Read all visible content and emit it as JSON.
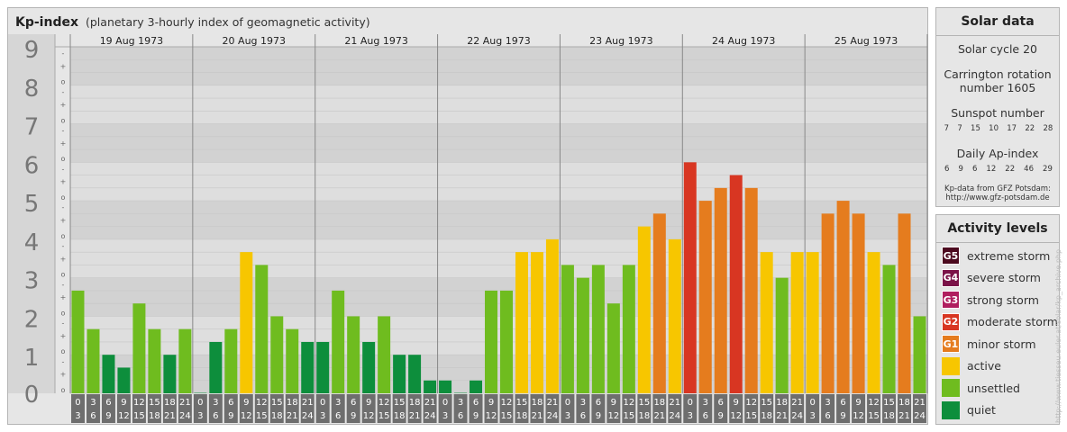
{
  "title": {
    "main": "Kp-index",
    "subtitle": "(planetary 3-hourly index of geomagnetic activity)"
  },
  "chart_data": {
    "type": "bar",
    "title": "Kp-index",
    "subtitle": "(planetary 3-hourly index of geomagnetic activity)",
    "ylim": [
      0,
      9
    ],
    "y_ticks": [
      "0",
      "1",
      "2",
      "3",
      "4",
      "5",
      "6",
      "7",
      "8",
      "9"
    ],
    "sub_ticks": [
      "o",
      "+",
      "-"
    ],
    "days": [
      {
        "date": "19 Aug 1973",
        "values": [
          2.667,
          1.667,
          1.0,
          0.667,
          2.333,
          1.667,
          1.0,
          1.667
        ]
      },
      {
        "date": "20 Aug 1973",
        "values": [
          0.0,
          1.333,
          1.667,
          3.667,
          3.333,
          2.0,
          1.667,
          1.333
        ]
      },
      {
        "date": "21 Aug 1973",
        "values": [
          1.333,
          2.667,
          2.0,
          1.333,
          2.0,
          1.0,
          1.0,
          0.333
        ]
      },
      {
        "date": "22 Aug 1973",
        "values": [
          0.333,
          0.0,
          0.333,
          2.667,
          2.667,
          3.667,
          3.667,
          4.0
        ]
      },
      {
        "date": "23 Aug 1973",
        "values": [
          3.333,
          3.0,
          3.333,
          2.333,
          3.333,
          4.333,
          4.667,
          4.0
        ]
      },
      {
        "date": "24 Aug 1973",
        "values": [
          6.0,
          5.0,
          5.333,
          5.667,
          5.333,
          3.667,
          3.0,
          3.667
        ]
      },
      {
        "date": "25 Aug 1973",
        "values": [
          3.667,
          4.667,
          5.0,
          4.667,
          3.667,
          3.333,
          4.667,
          2.0
        ]
      }
    ],
    "hour_start_labels": [
      "0",
      "3",
      "6",
      "9",
      "12",
      "15",
      "18",
      "21"
    ],
    "hour_end_labels": [
      "3",
      "6",
      "9",
      "12",
      "15",
      "18",
      "21",
      "24"
    ],
    "level_colors": {
      "quiet": "#0d8e3c",
      "unsettled": "#6fbc1f",
      "active": "#f7c600",
      "minor": "#e57c1e",
      "moderate": "#d83622",
      "strong": "#b01e5f",
      "severe": "#7b1248",
      "extreme": "#4c0a1f"
    },
    "grid": true
  },
  "solar": {
    "title": "Solar data",
    "cycle": "Solar cycle 20",
    "carrington_line1": "Carrington rotation",
    "carrington_line2": "number 1605",
    "sunspot_label": "Sunspot number",
    "sunspot_values": [
      "7",
      "7",
      "15",
      "10",
      "17",
      "22",
      "28"
    ],
    "ap_label": "Daily Ap-index",
    "ap_values": [
      "6",
      "9",
      "6",
      "12",
      "22",
      "46",
      "29"
    ],
    "credit_line1": "Kp-data from GFZ Potsdam:",
    "credit_line2": "http://www.gfz-potsdam.de"
  },
  "levels": {
    "title": "Activity levels",
    "items": [
      {
        "badge": "G5",
        "label": "extreme storm",
        "color": "#4c0a1f"
      },
      {
        "badge": "G4",
        "label": "severe storm",
        "color": "#7b1248"
      },
      {
        "badge": "G3",
        "label": "strong storm",
        "color": "#b01e5f"
      },
      {
        "badge": "G2",
        "label": "moderate storm",
        "color": "#d83622"
      },
      {
        "badge": "G1",
        "label": "minor storm",
        "color": "#e57c1e"
      },
      {
        "badge": "",
        "label": "active",
        "color": "#f7c600"
      },
      {
        "badge": "",
        "label": "unsettled",
        "color": "#6fbc1f"
      },
      {
        "badge": "",
        "label": "quiet",
        "color": "#0d8e3c"
      }
    ]
  },
  "side_credit": "http://www.tiesseu.euler.at/solar/kp_archive.php"
}
